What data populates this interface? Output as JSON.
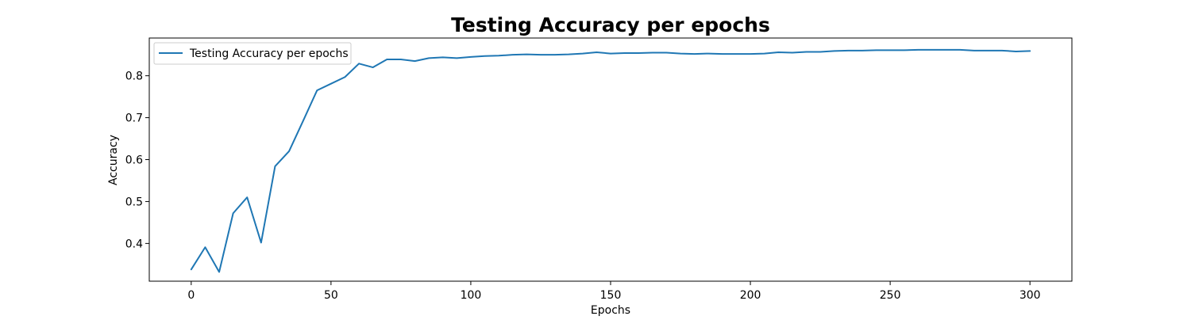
{
  "chart_data": {
    "type": "line",
    "title": "Testing Accuracy per epochs",
    "xlabel": "Epochs",
    "ylabel": "Accuracy",
    "xlim": [
      -15,
      315
    ],
    "ylim": [
      0.31,
      0.89
    ],
    "xticks": [
      0,
      50,
      100,
      150,
      200,
      250,
      300
    ],
    "yticks": [
      0.4,
      0.5,
      0.6,
      0.7,
      0.8
    ],
    "grid": false,
    "legend_position": "top-left",
    "series": [
      {
        "name": "Testing Accuracy per epochs",
        "color": "#1f77b4",
        "x": [
          0,
          5,
          10,
          15,
          20,
          25,
          30,
          35,
          40,
          45,
          50,
          55,
          60,
          65,
          70,
          75,
          80,
          85,
          90,
          95,
          100,
          105,
          110,
          115,
          120,
          125,
          130,
          135,
          140,
          145,
          150,
          155,
          160,
          165,
          170,
          175,
          180,
          185,
          190,
          195,
          200,
          205,
          210,
          215,
          220,
          225,
          230,
          235,
          240,
          245,
          250,
          255,
          260,
          265,
          270,
          275,
          280,
          285,
          290,
          295,
          300
        ],
        "y": [
          0.338,
          0.391,
          0.332,
          0.472,
          0.51,
          0.402,
          0.584,
          0.62,
          0.692,
          0.765,
          0.781,
          0.797,
          0.829,
          0.82,
          0.839,
          0.839,
          0.835,
          0.842,
          0.844,
          0.842,
          0.845,
          0.847,
          0.848,
          0.85,
          0.851,
          0.85,
          0.85,
          0.851,
          0.853,
          0.856,
          0.853,
          0.854,
          0.854,
          0.855,
          0.855,
          0.853,
          0.852,
          0.853,
          0.852,
          0.852,
          0.852,
          0.853,
          0.856,
          0.855,
          0.857,
          0.857,
          0.859,
          0.86,
          0.86,
          0.861,
          0.861,
          0.861,
          0.862,
          0.862,
          0.862,
          0.862,
          0.86,
          0.86,
          0.86,
          0.858,
          0.859
        ]
      }
    ]
  }
}
